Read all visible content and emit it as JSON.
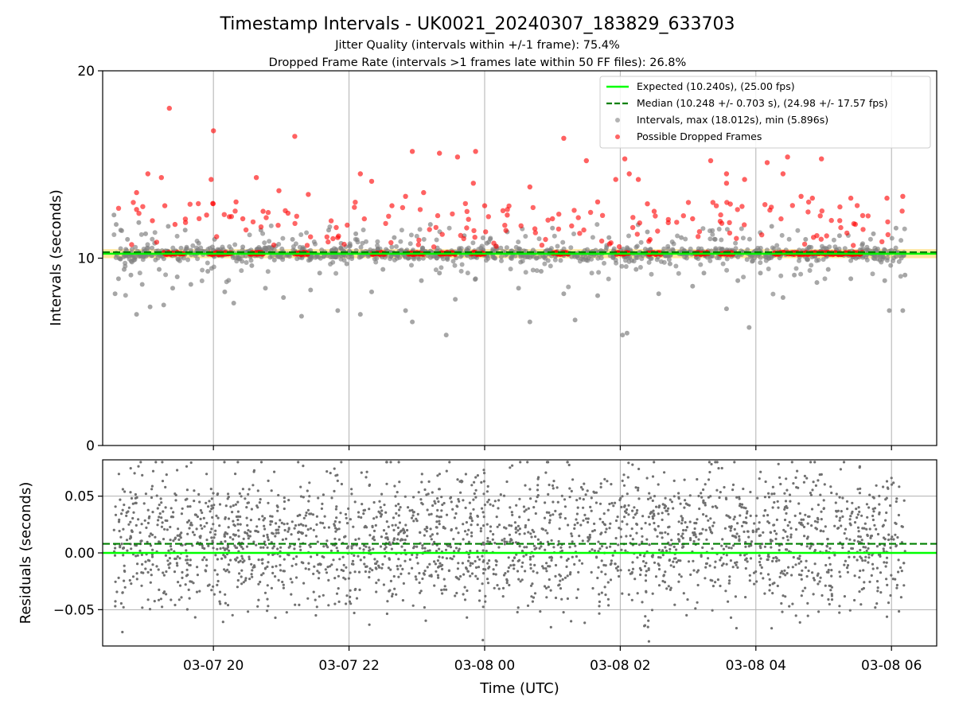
{
  "chart_data": [
    {
      "type": "scatter",
      "title": "Timestamp Intervals - UK0021_20240307_183829_633703",
      "subtitles": [
        "Jitter Quality (intervals within +/-1 frame): 75.4%",
        "Dropped Frame Rate (intervals >1 frames late within 50 FF files): 26.8%"
      ],
      "xlabel": "",
      "ylabel": "Intervals (seconds)",
      "x_range": [
        "2024-03-07 18:22",
        "2024-03-08 06:40"
      ],
      "ylim": [
        0,
        20
      ],
      "yticks": [
        0,
        10,
        20
      ],
      "grid": "vertical",
      "legend_position": "upper right",
      "reference_lines": [
        {
          "name": "Expected (10.240s), (25.00 fps)",
          "y": 10.24,
          "style": "solid",
          "color": "#00ff00"
        },
        {
          "name": "Median (10.248 +/- 0.703 s), (24.98 +/- 17.57 fps)",
          "y": 10.248,
          "style": "dashed",
          "color": "#008000"
        }
      ],
      "tolerance_band": {
        "y0": 10.0,
        "y1": 10.48,
        "color": "#ffd24d"
      },
      "series": [
        {
          "name": "Intervals, max (18.012s), min (5.896s)",
          "color": "#808080",
          "max": 18.012,
          "min": 5.896,
          "points": [
            [
              "2024-03-07 18:32",
              12.3
            ],
            [
              "2024-03-07 18:33",
              8.1
            ],
            [
              "2024-03-07 18:34",
              11.8
            ],
            [
              "2024-03-07 18:36",
              8.9
            ],
            [
              "2024-03-07 18:38",
              11.5
            ],
            [
              "2024-03-07 18:41",
              9.4
            ],
            [
              "2024-03-07 18:44",
              11.0
            ],
            [
              "2024-03-07 18:47",
              9.1
            ],
            [
              "2024-03-07 18:52",
              7.0
            ],
            [
              "2024-03-07 18:54",
              11.9
            ],
            [
              "2024-03-07 18:57",
              8.6
            ],
            [
              "2024-03-07 19:00",
              11.3
            ],
            [
              "2024-03-07 19:04",
              7.4
            ],
            [
              "2024-03-07 19:08",
              10.8
            ],
            [
              "2024-03-07 19:12",
              9.4
            ],
            [
              "2024-03-07 19:16",
              7.5
            ],
            [
              "2024-03-07 19:20",
              11.7
            ],
            [
              "2024-03-07 19:24",
              8.4
            ],
            [
              "2024-03-07 19:28",
              9.0
            ],
            [
              "2024-03-07 19:35",
              11.5
            ],
            [
              "2024-03-07 19:40",
              8.6
            ],
            [
              "2024-03-07 19:47",
              10.8
            ],
            [
              "2024-03-07 19:55",
              9.3
            ],
            [
              "2024-03-07 20:01",
              11.0
            ],
            [
              "2024-03-07 20:10",
              8.2
            ],
            [
              "2024-03-07 20:18",
              7.6
            ],
            [
              "2024-03-07 20:26",
              10.6
            ],
            [
              "2024-03-07 20:34",
              9.6
            ],
            [
              "2024-03-07 20:42",
              11.5
            ],
            [
              "2024-03-07 20:46",
              8.4
            ],
            [
              "2024-03-07 20:54",
              9.9
            ],
            [
              "2024-03-07 21:02",
              7.9
            ],
            [
              "2024-03-07 21:10",
              11.0
            ],
            [
              "2024-03-07 21:18",
              6.9
            ],
            [
              "2024-03-07 21:26",
              8.3
            ],
            [
              "2024-03-07 21:34",
              9.2
            ],
            [
              "2024-03-07 21:42",
              11.5
            ],
            [
              "2024-03-07 21:50",
              7.2
            ],
            [
              "2024-03-07 21:58",
              9.7
            ],
            [
              "2024-03-07 22:06",
              11.3
            ],
            [
              "2024-03-07 22:10",
              7.0
            ],
            [
              "2024-03-07 22:20",
              8.2
            ],
            [
              "2024-03-07 22:30",
              9.4
            ],
            [
              "2024-03-07 22:40",
              11.1
            ],
            [
              "2024-03-07 22:50",
              7.2
            ],
            [
              "2024-03-07 22:56",
              6.6
            ],
            [
              "2024-03-07 23:04",
              8.8
            ],
            [
              "2024-03-07 23:12",
              11.8
            ],
            [
              "2024-03-07 23:20",
              9.2
            ],
            [
              "2024-03-07 23:26",
              5.9
            ],
            [
              "2024-03-07 23:34",
              7.8
            ],
            [
              "2024-03-07 23:42",
              11.2
            ],
            [
              "2024-03-07 23:52",
              8.9
            ],
            [
              "2024-03-08 00:02",
              10.8
            ],
            [
              "2024-03-08 00:20",
              11.4
            ],
            [
              "2024-03-08 00:30",
              8.4
            ],
            [
              "2024-03-08 00:40",
              6.6
            ],
            [
              "2024-03-08 00:50",
              9.3
            ],
            [
              "2024-03-08 01:00",
              11.6
            ],
            [
              "2024-03-08 01:10",
              8.1
            ],
            [
              "2024-03-08 01:20",
              6.7
            ],
            [
              "2024-03-08 01:30",
              9.9
            ],
            [
              "2024-03-08 01:40",
              8.0
            ],
            [
              "2024-03-08 01:50",
              11.1
            ],
            [
              "2024-03-08 02:02",
              5.9
            ],
            [
              "2024-03-08 02:06",
              6.0
            ],
            [
              "2024-03-08 02:14",
              9.4
            ],
            [
              "2024-03-08 02:24",
              11.4
            ],
            [
              "2024-03-08 02:34",
              8.1
            ],
            [
              "2024-03-08 02:44",
              9.7
            ],
            [
              "2024-03-08 02:54",
              11.1
            ],
            [
              "2024-03-08 03:04",
              8.5
            ],
            [
              "2024-03-08 03:14",
              9.2
            ],
            [
              "2024-03-08 03:24",
              11.0
            ],
            [
              "2024-03-08 03:34",
              7.3
            ],
            [
              "2024-03-08 03:44",
              8.8
            ],
            [
              "2024-03-08 03:54",
              6.3
            ],
            [
              "2024-03-08 04:04",
              9.2
            ],
            [
              "2024-03-08 04:14",
              11.7
            ],
            [
              "2024-03-08 04:24",
              7.9
            ],
            [
              "2024-03-08 04:34",
              9.1
            ],
            [
              "2024-03-08 04:44",
              11.0
            ],
            [
              "2024-03-08 04:54",
              8.7
            ],
            [
              "2024-03-08 05:04",
              9.4
            ],
            [
              "2024-03-08 05:14",
              11.2
            ],
            [
              "2024-03-08 05:24",
              8.9
            ],
            [
              "2024-03-08 05:34",
              10.7
            ],
            [
              "2024-03-08 05:44",
              11.3
            ],
            [
              "2024-03-08 05:54",
              8.8
            ],
            [
              "2024-03-08 05:58",
              7.2
            ],
            [
              "2024-03-08 06:04",
              11.6
            ],
            [
              "2024-03-08 06:10",
              7.2
            ],
            [
              "2024-03-08 06:12",
              9.1
            ]
          ]
        },
        {
          "name": "Possible Dropped Frames",
          "color": "#ff0000",
          "points": [
            [
              "2024-03-07 18:52",
              13.5
            ],
            [
              "2024-03-07 18:52",
              12.6
            ],
            [
              "2024-03-07 19:02",
              14.5
            ],
            [
              "2024-03-07 19:06",
              12.0
            ],
            [
              "2024-03-07 19:14",
              14.3
            ],
            [
              "2024-03-07 19:17",
              12.8
            ],
            [
              "2024-03-07 19:21",
              18.0
            ],
            [
              "2024-03-07 19:26",
              11.8
            ],
            [
              "2024-03-07 19:54",
              12.3
            ],
            [
              "2024-03-07 19:58",
              14.2
            ],
            [
              "2024-03-07 20:00",
              16.8
            ],
            [
              "2024-03-07 20:20",
              13.0
            ],
            [
              "2024-03-07 20:26",
              12.1
            ],
            [
              "2024-03-07 20:38",
              14.3
            ],
            [
              "2024-03-07 20:44",
              12.5
            ],
            [
              "2024-03-07 20:58",
              13.6
            ],
            [
              "2024-03-07 21:06",
              12.4
            ],
            [
              "2024-03-07 21:12",
              16.5
            ],
            [
              "2024-03-07 21:24",
              13.4
            ],
            [
              "2024-03-07 21:50",
              11.1
            ],
            [
              "2024-03-07 22:10",
              14.5
            ],
            [
              "2024-03-07 22:20",
              14.1
            ],
            [
              "2024-03-07 22:38",
              12.8
            ],
            [
              "2024-03-07 22:50",
              13.3
            ],
            [
              "2024-03-07 22:56",
              15.7
            ],
            [
              "2024-03-07 23:06",
              13.5
            ],
            [
              "2024-03-07 23:20",
              15.6
            ],
            [
              "2024-03-07 23:36",
              15.4
            ],
            [
              "2024-03-07 23:50",
              14.0
            ],
            [
              "2024-03-07 23:52",
              15.7
            ],
            [
              "2024-03-08 00:00",
              12.8
            ],
            [
              "2024-03-08 00:20",
              12.3
            ],
            [
              "2024-03-08 00:40",
              13.8
            ],
            [
              "2024-03-08 01:00",
              12.1
            ],
            [
              "2024-03-08 01:10",
              16.4
            ],
            [
              "2024-03-08 01:30",
              15.2
            ],
            [
              "2024-03-08 01:40",
              13.0
            ],
            [
              "2024-03-08 01:56",
              14.2
            ],
            [
              "2024-03-08 02:04",
              15.3
            ],
            [
              "2024-03-08 02:08",
              14.5
            ],
            [
              "2024-03-08 02:16",
              14.2
            ],
            [
              "2024-03-08 02:24",
              12.9
            ],
            [
              "2024-03-08 02:30",
              12.5
            ],
            [
              "2024-03-08 03:04",
              12.1
            ],
            [
              "2024-03-08 03:20",
              15.2
            ],
            [
              "2024-03-08 03:34",
              14.5
            ],
            [
              "2024-03-08 03:34",
              14.0
            ],
            [
              "2024-03-08 03:50",
              14.2
            ],
            [
              "2024-03-08 04:10",
              15.1
            ],
            [
              "2024-03-08 04:24",
              14.5
            ],
            [
              "2024-03-08 04:28",
              15.4
            ],
            [
              "2024-03-08 04:40",
              13.3
            ],
            [
              "2024-03-08 04:50",
              13.2
            ],
            [
              "2024-03-08 04:58",
              15.3
            ],
            [
              "2024-03-08 05:24",
              13.2
            ],
            [
              "2024-03-08 05:56",
              13.2
            ],
            [
              "2024-03-08 06:10",
              13.3
            ]
          ]
        }
      ]
    },
    {
      "type": "scatter",
      "title": "",
      "xlabel": "Time (UTC)",
      "ylabel": "Residuals (seconds)",
      "x_range": [
        "2024-03-07 18:22",
        "2024-03-08 06:40"
      ],
      "ylim": [
        -0.082,
        0.082
      ],
      "yticks": [
        -0.05,
        0.0,
        0.05
      ],
      "ytick_labels": [
        "−0.05",
        "0.00",
        "0.05"
      ],
      "xticks": [
        "2024-03-07 20:00",
        "2024-03-07 22:00",
        "2024-03-08 00:00",
        "2024-03-08 02:00",
        "2024-03-08 04:00",
        "2024-03-08 06:00"
      ],
      "xtick_labels": [
        "03-07 20",
        "03-07 22",
        "03-08 00",
        "03-08 02",
        "03-08 04",
        "03-08 06"
      ],
      "grid": "both",
      "reference_lines": [
        {
          "y": 0.0,
          "style": "solid",
          "color": "#00ff00"
        },
        {
          "y": 0.008,
          "style": "dashed",
          "color": "#008000"
        }
      ],
      "series": [
        {
          "color": "#808080",
          "x_start": "2024-03-07 18:32",
          "x_end": "2024-03-08 06:12",
          "y_spread": [
            -0.08,
            0.08
          ],
          "count": 2500
        }
      ]
    }
  ],
  "colors": {
    "grey_points": "#808080",
    "red_points": "#ff0000",
    "expected_line": "#00ff00",
    "median_line": "#008000",
    "tolerance_band": "#ffd24d",
    "grid": "#b0b0b0"
  }
}
